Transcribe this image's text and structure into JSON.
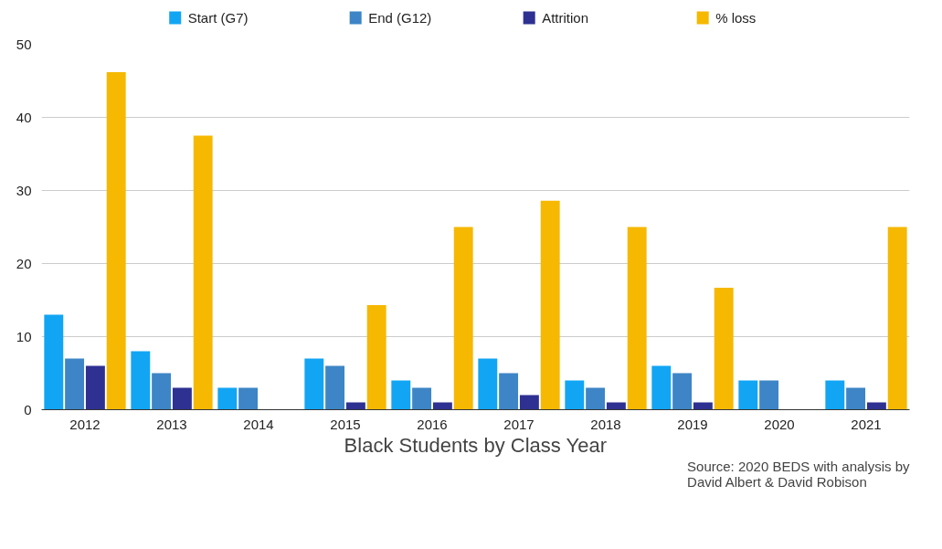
{
  "chart_data": {
    "type": "bar",
    "title": "Black Students by Class Year",
    "categories": [
      "2012",
      "2013",
      "2014",
      "2015",
      "2016",
      "2017",
      "2018",
      "2019",
      "2020",
      "2021"
    ],
    "series": [
      {
        "name": "Start (G7)",
        "color": "#12a5f4",
        "values": [
          13,
          8,
          3,
          7,
          4,
          7,
          4,
          6,
          4,
          4
        ]
      },
      {
        "name": "End (G12)",
        "color": "#3d85c6",
        "values": [
          7,
          5,
          3,
          6,
          3,
          5,
          3,
          5,
          4,
          3
        ]
      },
      {
        "name": "Attrition",
        "color": "#2e3192",
        "values": [
          6,
          3,
          0,
          1,
          1,
          2,
          1,
          1,
          0,
          1
        ]
      },
      {
        "name": "% loss",
        "color": "#f6b800",
        "values": [
          46.2,
          37.5,
          0,
          14.3,
          25,
          28.6,
          25,
          16.7,
          0,
          25
        ]
      }
    ],
    "ylim": [
      0,
      50
    ],
    "yticks": [
      0,
      10,
      20,
      30,
      40,
      50
    ],
    "grid": "y",
    "legend": "top",
    "annotations": [
      "Source: 2020 BEDS with analysis by\nDavid Albert & David Robison"
    ]
  }
}
